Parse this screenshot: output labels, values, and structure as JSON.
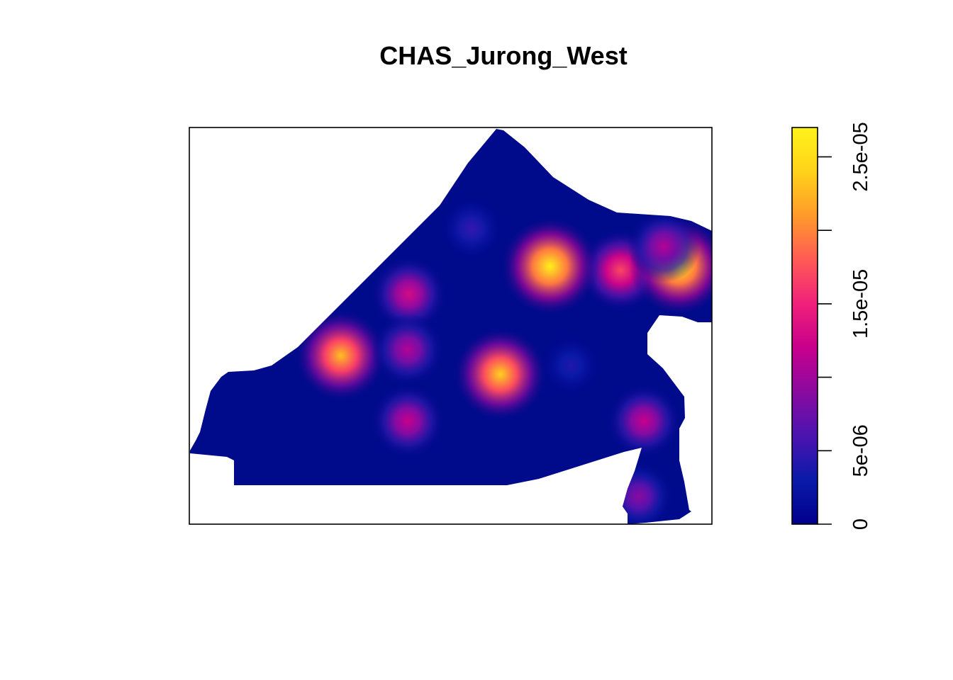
{
  "chart_data": {
    "type": "heatmap",
    "title": "CHAS_Jurong_West",
    "xlabel": "",
    "ylabel": "",
    "value_range": [
      0,
      2.7e-05
    ],
    "colorbar_ticks": [
      {
        "value": 0,
        "label": "0"
      },
      {
        "value": 5e-06,
        "label": "5e-06"
      },
      {
        "value": 1e-05,
        "label": ""
      },
      {
        "value": 1.5e-05,
        "label": "1.5e-05"
      },
      {
        "value": 2e-05,
        "label": ""
      },
      {
        "value": 2.5e-05,
        "label": "2.5e-05"
      }
    ],
    "colormap": [
      "#00008B",
      "#0A1AA8",
      "#4B14B0",
      "#8A0AA0",
      "#C8008C",
      "#F0207A",
      "#FF5A55",
      "#FF9A2A",
      "#FFD21A",
      "#FFF21A"
    ],
    "background_color": "#000B8C",
    "hotspots": [
      {
        "x": 0.29,
        "y": 0.425,
        "intensity": 2.3e-05
      },
      {
        "x": 0.595,
        "y": 0.378,
        "intensity": 2.4e-05
      },
      {
        "x": 0.825,
        "y": 0.64,
        "intensity": 1.7e-05
      },
      {
        "x": 0.69,
        "y": 0.65,
        "intensity": 2.7e-05
      },
      {
        "x": 0.937,
        "y": 0.65,
        "intensity": 2.7e-05
      },
      {
        "x": 0.42,
        "y": 0.58,
        "intensity": 1.3e-05
      },
      {
        "x": 0.418,
        "y": 0.44,
        "intensity": 1.1e-05
      },
      {
        "x": 0.418,
        "y": 0.26,
        "intensity": 1.2e-05
      },
      {
        "x": 0.87,
        "y": 0.26,
        "intensity": 1.2e-05
      },
      {
        "x": 0.86,
        "y": 0.07,
        "intensity": 9e-06
      },
      {
        "x": 0.908,
        "y": 0.7,
        "intensity": 1.1e-05
      },
      {
        "x": 0.54,
        "y": 0.745,
        "intensity": 5e-06
      },
      {
        "x": 0.73,
        "y": 0.4,
        "intensity": 4e-06
      }
    ]
  }
}
